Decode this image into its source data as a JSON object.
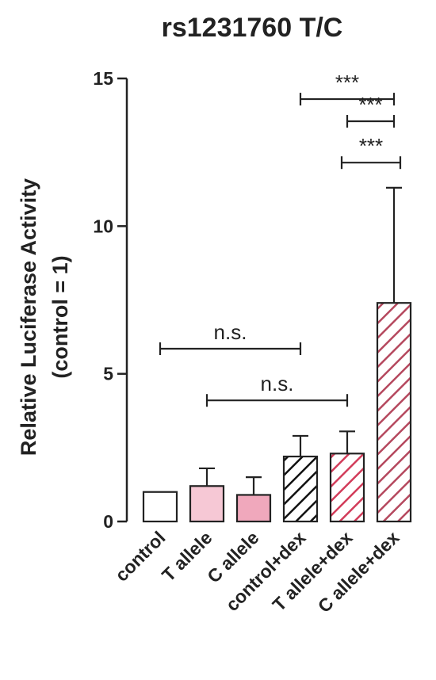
{
  "chart_data": {
    "type": "bar",
    "title": "rs1231760 T/C",
    "ylabel_line1": "Relative Luciferase Activity",
    "ylabel_line2": "(control = 1)",
    "ylim": [
      0,
      15
    ],
    "yticks": [
      0,
      5,
      10,
      15
    ],
    "categories": [
      "control",
      "T allele",
      "C allele",
      "control+dex",
      "T allele+dex",
      "C allele+dex"
    ],
    "values": [
      1.0,
      1.2,
      0.9,
      2.2,
      2.3,
      7.4
    ],
    "errors": [
      0,
      0.6,
      0.6,
      0.7,
      0.75,
      3.9
    ],
    "styles": [
      {
        "fill": "#ffffff",
        "pattern": "none",
        "hatch": ""
      },
      {
        "fill": "#f6c8d5",
        "pattern": "none",
        "hatch": ""
      },
      {
        "fill": "#f0a8bc",
        "pattern": "none",
        "hatch": ""
      },
      {
        "fill": "#ffffff",
        "pattern": "hatch",
        "hatch": "#111111"
      },
      {
        "fill": "#ffffff",
        "pattern": "hatch",
        "hatch": "#d23c5a"
      },
      {
        "fill": "#ffffff",
        "pattern": "hatch",
        "hatch": "#b5485e"
      }
    ],
    "comparisons": [
      {
        "from": 0,
        "to": 3,
        "y": 5.85,
        "label": "n.s."
      },
      {
        "from": 1,
        "to": 4,
        "y": 4.1,
        "label": "n.s."
      },
      {
        "from": 3,
        "to": 5,
        "y": 14.3,
        "label": "***"
      },
      {
        "from": 4,
        "to": 5,
        "y": 13.55,
        "label": "***"
      },
      {
        "from": 5,
        "to": 5,
        "y": 12.15,
        "label": "***"
      }
    ]
  }
}
